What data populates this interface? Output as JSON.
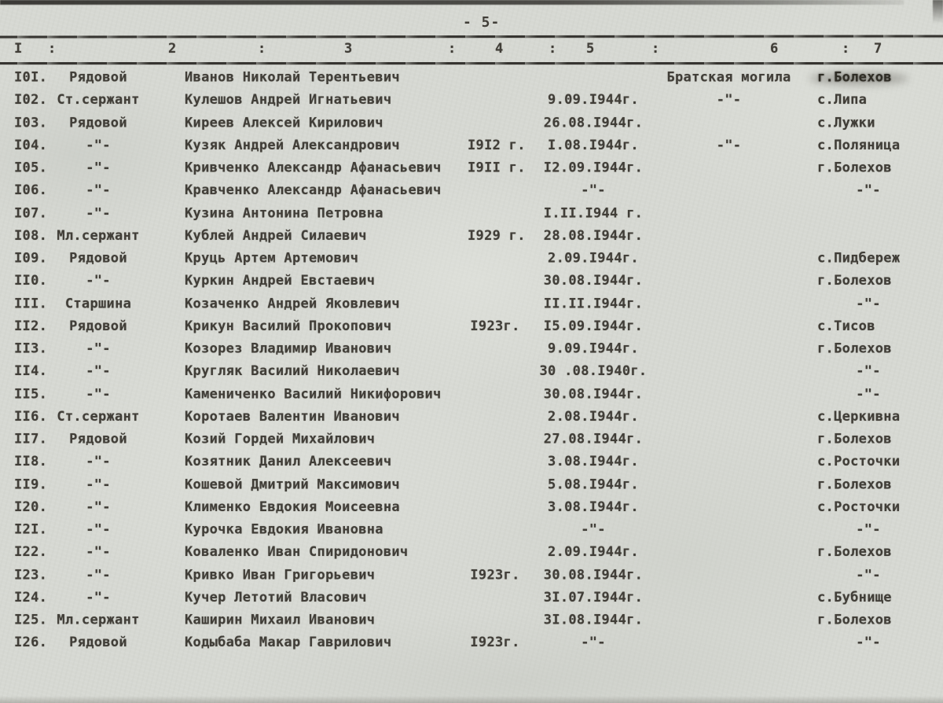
{
  "page_label": "- 5-",
  "header": {
    "separator": ":",
    "columns": [
      "I",
      "2",
      "3",
      "4",
      "5",
      "6",
      "7"
    ]
  },
  "table": {
    "ditto_mark": "-\"-",
    "rows": [
      [
        "I0I.",
        "Рядовой",
        "Иванов Николай Терентьевич",
        "",
        "",
        "Братская могила",
        "г.Болехов"
      ],
      [
        "I02.",
        "Ст.сержант",
        "Кулешов Андрей Игнатьевич",
        "",
        "9.09.I944г.",
        "-\"-",
        "с.Липа"
      ],
      [
        "I03.",
        "Рядовой",
        "Киреев Алексей Кирилович",
        "",
        "26.08.I944г.",
        "",
        "с.Лужки"
      ],
      [
        "I04.",
        "-\"-",
        "Кузяк Андрей Александрович",
        "I9I2 г.",
        "I.08.I944г.",
        "-\"-",
        "с.Поляница"
      ],
      [
        "I05.",
        "-\"-",
        "Кривченко Александр Афанасьевич",
        "I9II г.",
        "I2.09.I944г.",
        "",
        "г.Болехов"
      ],
      [
        "I06.",
        "-\"-",
        "Кравченко Александр Афанасьевич",
        "",
        "-\"-",
        "",
        "-\"-"
      ],
      [
        "I07.",
        "-\"-",
        "Кузина Антонина Петровна",
        "",
        "I.II.I944 г.",
        "",
        ""
      ],
      [
        "I08.",
        "Мл.сержант",
        "Кублей Андрей Силаевич",
        "I929 г.",
        "28.08.I944г.",
        "",
        ""
      ],
      [
        "I09.",
        "Рядовой",
        "Круць Артем Артемович",
        "",
        "2.09.I944г.",
        "",
        "с.Пидбереж"
      ],
      [
        "II0.",
        "-\"-",
        "Куркин Андрей Евстаевич",
        "",
        "30.08.I944г.",
        "",
        "г.Болехов"
      ],
      [
        "III.",
        "Старшина",
        "Козаченко Андрей Яковлевич",
        "",
        "II.II.I944г.",
        "",
        "-\"-"
      ],
      [
        "II2.",
        "Рядовой",
        "Крикун Василий Прокопович",
        "I923г.",
        "I5.09.I944г.",
        "",
        "с.Тисов"
      ],
      [
        "II3.",
        "-\"-",
        "Козорез Владимир Иванович",
        "",
        "9.09.I944г.",
        "",
        "г.Болехов"
      ],
      [
        "II4.",
        "-\"-",
        "Кругляк Василий Николаевич",
        "",
        "30 .08.I940г.",
        "",
        "-\"-"
      ],
      [
        "II5.",
        "-\"-",
        "Камениченко Василий Никифорович",
        "",
        "30.08.I944г.",
        "",
        "-\"-"
      ],
      [
        "II6.",
        "Ст.сержант",
        "Коротаев Валентин Иванович",
        "",
        "2.08.I944г.",
        "",
        "с.Церкивна"
      ],
      [
        "II7.",
        "Рядовой",
        "Козий Гордей Михайлович",
        "",
        "27.08.I944г.",
        "",
        "г.Болехов"
      ],
      [
        "II8.",
        "-\"-",
        "Козятник Данил Алексеевич",
        "",
        "3.08.I944г.",
        "",
        "с.Росточки"
      ],
      [
        "II9.",
        "-\"-",
        "Кошевой Дмитрий Максимович",
        "",
        "5.08.I944г.",
        "",
        "г.Болехов"
      ],
      [
        "I20.",
        "-\"-",
        "Клименко Евдокия Моисеевна",
        "",
        "3.08.I944г.",
        "",
        "с.Росточки"
      ],
      [
        "I2I.",
        "-\"-",
        "Курочка Евдокия Ивановна",
        "",
        "-\"-",
        "",
        "-\"-"
      ],
      [
        "I22.",
        "-\"-",
        "Коваленко Иван Спиридонович",
        "",
        "2.09.I944г.",
        "",
        "г.Болехов"
      ],
      [
        "I23.",
        "-\"-",
        "Кривко Иван Григорьевич",
        "I923г.",
        "30.08.I944г.",
        "",
        "-\"-"
      ],
      [
        "I24.",
        "-\"-",
        "Кучер Летотий Власович",
        "",
        "3I.07.I944г.",
        "",
        "с.Бубнище"
      ],
      [
        "I25.",
        "Мл.сержант",
        "Каширин Михаил Иванович",
        "",
        "3I.08.I944г.",
        "",
        "г.Болехов"
      ],
      [
        "I26.",
        "Рядовой",
        "Кодыбаба Макар Гаврилович",
        "I923г.",
        "-\"-",
        "",
        "-\"-"
      ]
    ]
  }
}
